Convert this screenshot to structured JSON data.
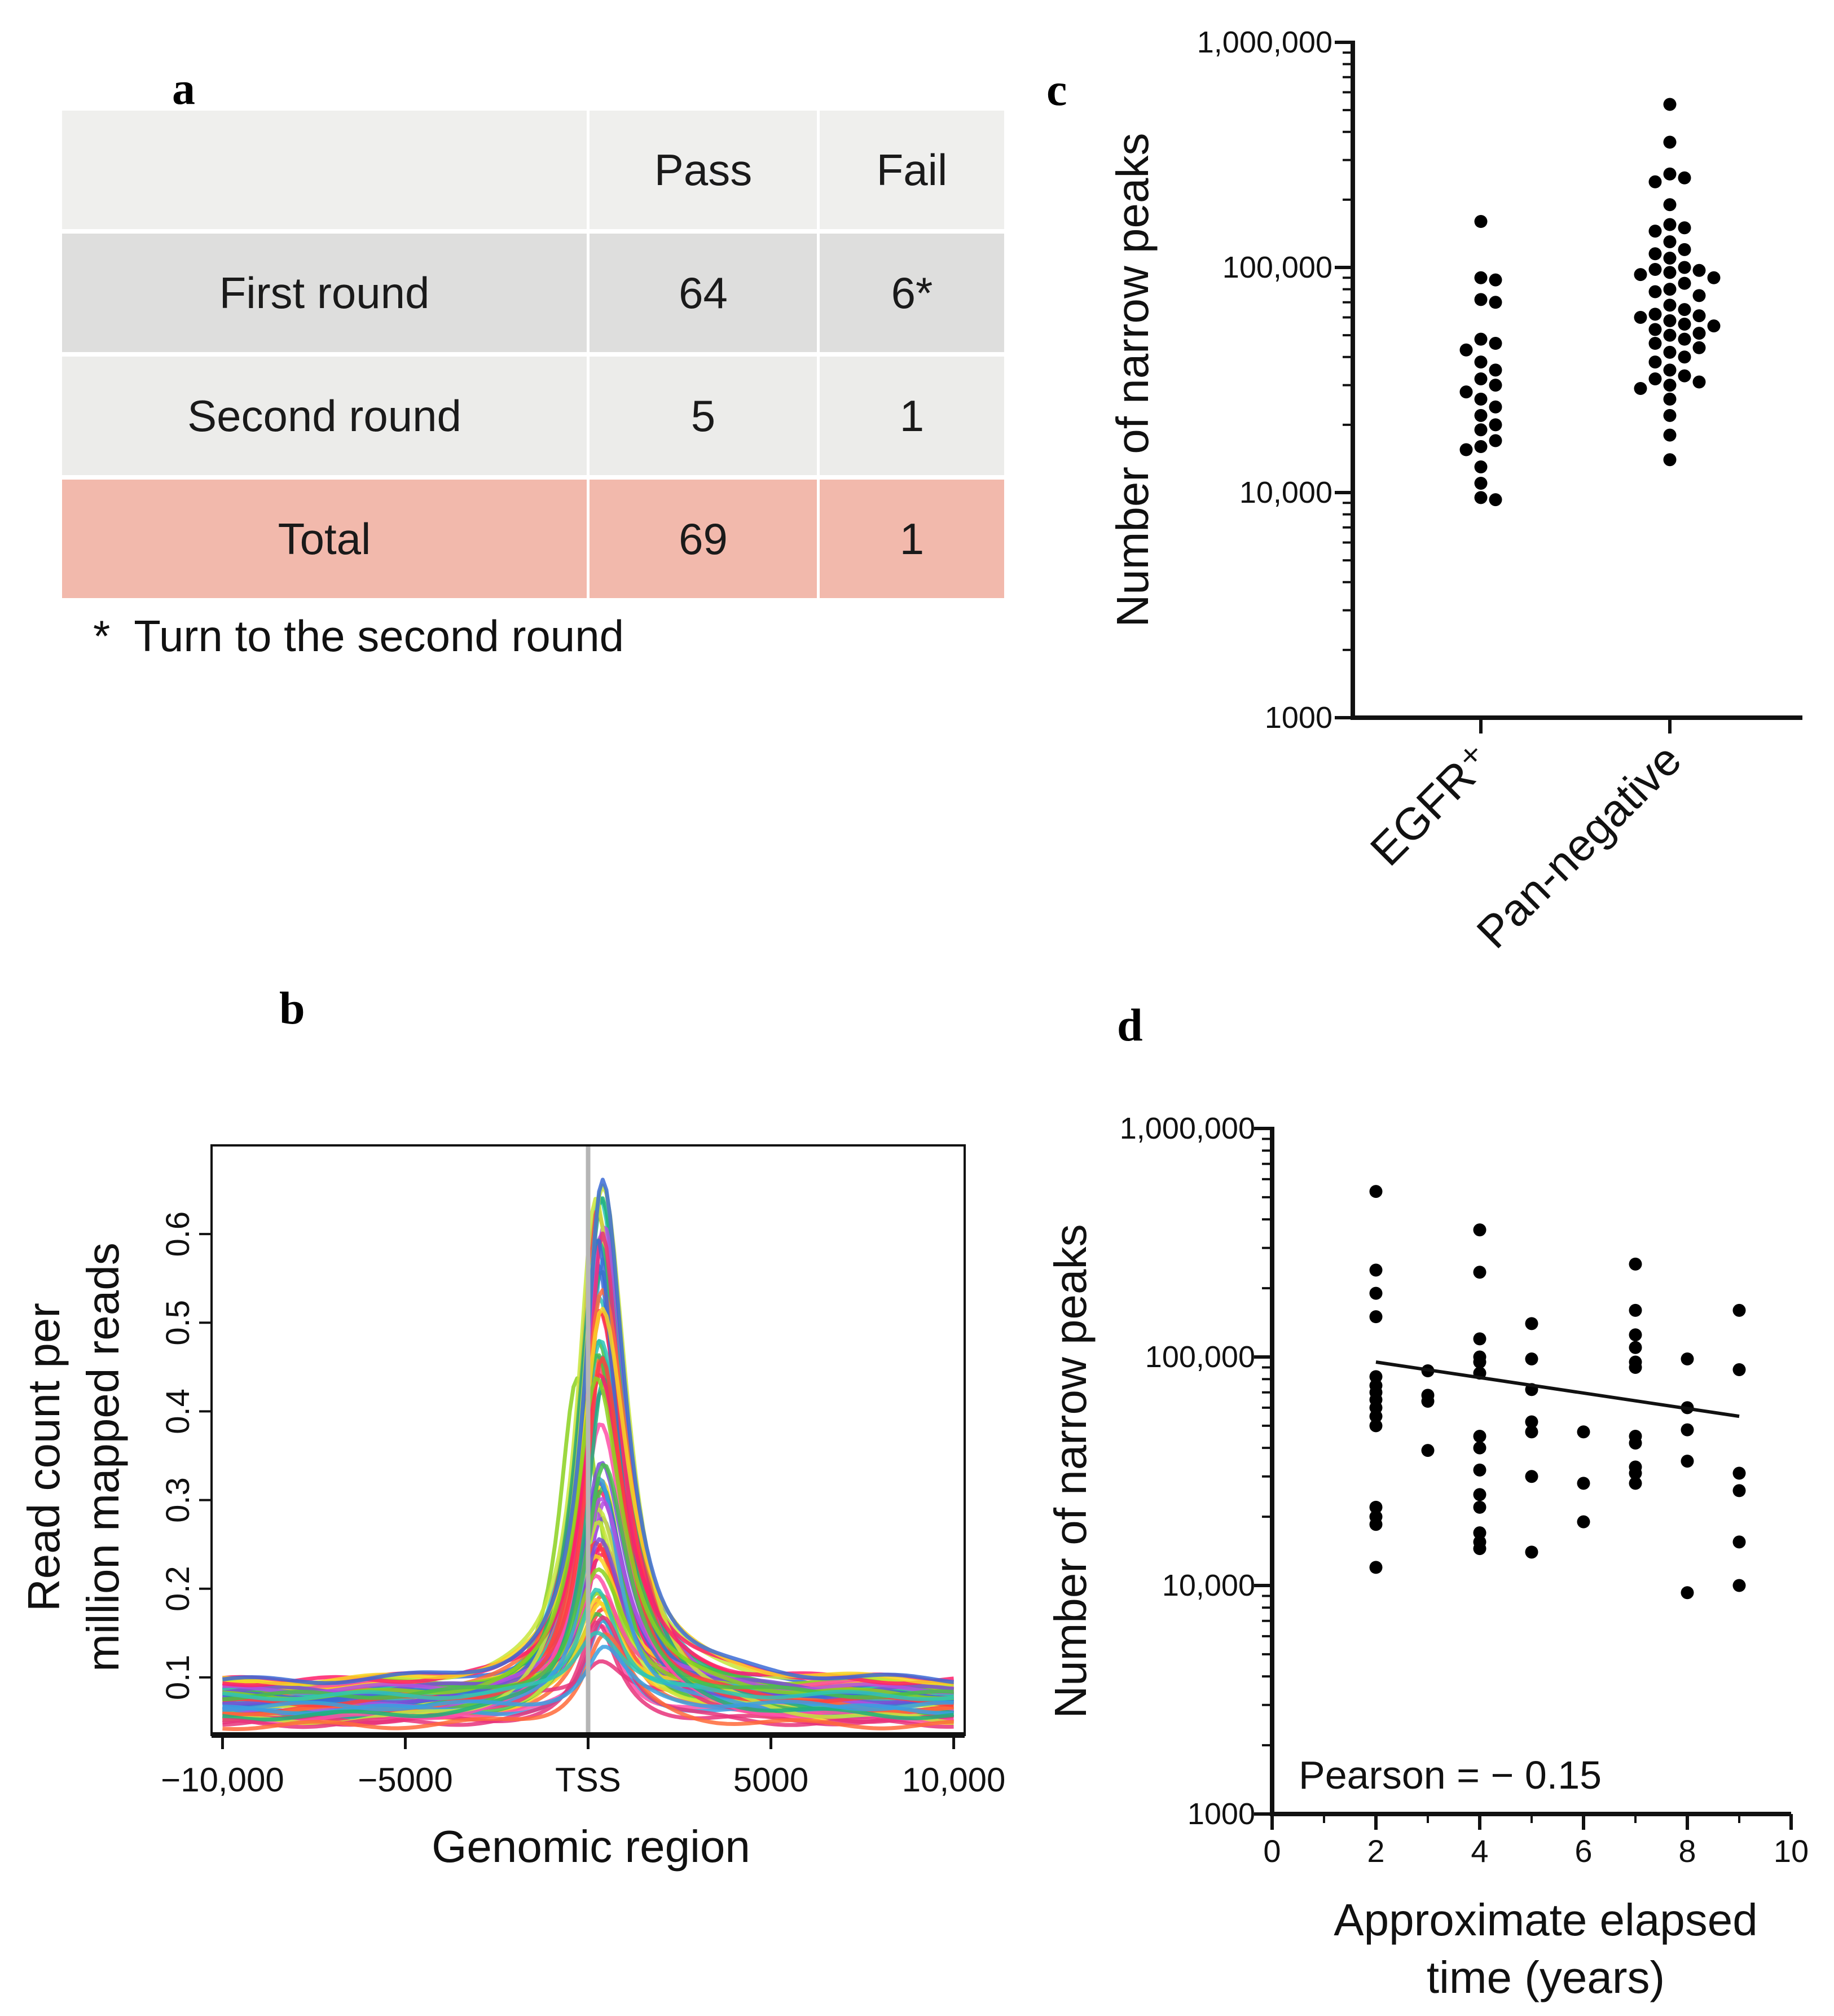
{
  "panel_labels": {
    "a": "a",
    "b": "b",
    "c": "c",
    "d": "d"
  },
  "table": {
    "headers": [
      "",
      "Pass",
      "Fail"
    ],
    "rows": [
      {
        "label": "First round",
        "pass": "64",
        "fail": "6*"
      },
      {
        "label": "Second round",
        "pass": "5",
        "fail": "1"
      },
      {
        "label": "Total",
        "pass": "69",
        "fail": "1"
      }
    ],
    "footnote": "*  Turn to the second round",
    "colors": {
      "header": "#efefed",
      "first": "#dededd",
      "second": "#ececea",
      "total": "#f2b9ac"
    }
  },
  "chart_data": [
    {
      "id": "b",
      "type": "line",
      "title": "",
      "xlabel": "Genomic region",
      "ylabel_lines": [
        "Read count per",
        "million mapped reads"
      ],
      "x_tick_labels": [
        "−10,000",
        "−5000",
        "TSS",
        "5000",
        "10,000"
      ],
      "x_ticks": [
        -10000,
        -5000,
        0,
        5000,
        10000
      ],
      "xlim": [
        -10300,
        10300
      ],
      "y_ticks": [
        0.1,
        0.2,
        0.3,
        0.4,
        0.5,
        0.6
      ],
      "ylim": [
        0.035,
        0.7
      ],
      "n_series": 70,
      "profile_summary": {
        "peak_x": 300,
        "peak_min": 0.12,
        "peak_max": 0.66,
        "baseline_min": 0.045,
        "baseline_max": 0.095,
        "secondary_peak_x": -300,
        "secondary_peak_value": 0.44
      },
      "palette": [
        "#ff1f6b",
        "#ff3f3f",
        "#e8327a",
        "#ff6a3a",
        "#f9d423",
        "#8bd11e",
        "#46c04a",
        "#2ec4b6",
        "#3aa0e0",
        "#3b6bd6",
        "#7a4fd6",
        "#b44fe0",
        "#ff4fa8",
        "#c8e63c",
        "#20b07a"
      ],
      "tss_line_color": "#b5b5b5"
    },
    {
      "id": "c",
      "type": "scatter",
      "ylabel": "Number of narrow peaks",
      "yscale": "log",
      "ylim": [
        1000,
        1000000
      ],
      "y_tick_labels": [
        "1000",
        "10,000",
        "100,000",
        "1,000,000"
      ],
      "y_ticks": [
        1000,
        10000,
        100000,
        1000000
      ],
      "categories": [
        "EGFR⁺",
        "Pan-negative"
      ],
      "series": [
        {
          "name": "EGFR⁺",
          "values": [
            160000,
            90000,
            88000,
            72000,
            70000,
            48000,
            46000,
            43000,
            38000,
            35000,
            32000,
            30000,
            28000,
            26000,
            24000,
            22000,
            20000,
            19000,
            17000,
            16000,
            15500,
            13000,
            11000,
            9500,
            9300
          ]
        },
        {
          "name": "Pan-negative",
          "values": [
            530000,
            360000,
            260000,
            250000,
            240000,
            190000,
            155000,
            150000,
            145000,
            130000,
            120000,
            115000,
            110000,
            100000,
            98000,
            97000,
            95000,
            93000,
            90000,
            85000,
            80000,
            78000,
            75000,
            68000,
            65000,
            62000,
            61000,
            60000,
            58000,
            56000,
            55000,
            53000,
            51000,
            50000,
            48000,
            46000,
            44000,
            42000,
            40000,
            38000,
            35000,
            33000,
            32000,
            31000,
            30000,
            29000,
            26000,
            22000,
            18000,
            14000
          ]
        }
      ]
    },
    {
      "id": "d",
      "type": "scatter",
      "xlabel_lines": [
        "Approximate elapsed",
        "time (years)"
      ],
      "ylabel": "Number of narrow peaks",
      "yscale": "log",
      "xlim": [
        0,
        10
      ],
      "x_ticks": [
        0,
        2,
        4,
        6,
        8,
        10
      ],
      "ylim": [
        1000,
        1000000
      ],
      "y_tick_labels": [
        "1000",
        "10,000",
        "100,000",
        "1,000,000"
      ],
      "y_ticks": [
        1000,
        10000,
        100000,
        1000000
      ],
      "annotation": "Pearson =  − 0.15",
      "trendline": {
        "x": [
          2,
          9
        ],
        "y": [
          95000,
          55000
        ]
      },
      "points": [
        [
          2,
          530000
        ],
        [
          2,
          240000
        ],
        [
          2,
          190000
        ],
        [
          2,
          150000
        ],
        [
          2,
          82000
        ],
        [
          2,
          75000
        ],
        [
          2,
          70000
        ],
        [
          2,
          65000
        ],
        [
          2,
          60000
        ],
        [
          2,
          55000
        ],
        [
          2,
          50000
        ],
        [
          2,
          22000
        ],
        [
          2,
          20000
        ],
        [
          2,
          18500
        ],
        [
          2,
          12000
        ],
        [
          3,
          87000
        ],
        [
          3,
          68000
        ],
        [
          3,
          64000
        ],
        [
          3,
          39000
        ],
        [
          4,
          360000
        ],
        [
          4,
          235000
        ],
        [
          4,
          120000
        ],
        [
          4,
          100000
        ],
        [
          4,
          95000
        ],
        [
          4,
          85000
        ],
        [
          4,
          45000
        ],
        [
          4,
          40000
        ],
        [
          4,
          32000
        ],
        [
          4,
          25000
        ],
        [
          4,
          22000
        ],
        [
          4,
          17000
        ],
        [
          4,
          15500
        ],
        [
          4,
          14500
        ],
        [
          5,
          140000
        ],
        [
          5,
          98000
        ],
        [
          5,
          72000
        ],
        [
          5,
          52000
        ],
        [
          5,
          47000
        ],
        [
          5,
          30000
        ],
        [
          5,
          14000
        ],
        [
          6,
          47000
        ],
        [
          6,
          28000
        ],
        [
          6,
          19000
        ],
        [
          7,
          255000
        ],
        [
          7,
          160000
        ],
        [
          7,
          125000
        ],
        [
          7,
          110000
        ],
        [
          7,
          95000
        ],
        [
          7,
          90000
        ],
        [
          7,
          45000
        ],
        [
          7,
          42000
        ],
        [
          7,
          33000
        ],
        [
          7,
          31000
        ],
        [
          7,
          28000
        ],
        [
          8,
          98000
        ],
        [
          8,
          60000
        ],
        [
          8,
          48000
        ],
        [
          8,
          35000
        ],
        [
          8,
          9300
        ],
        [
          9,
          160000
        ],
        [
          9,
          88000
        ],
        [
          9,
          31000
        ],
        [
          9,
          26000
        ],
        [
          9,
          15500
        ],
        [
          9,
          10000
        ]
      ]
    }
  ]
}
